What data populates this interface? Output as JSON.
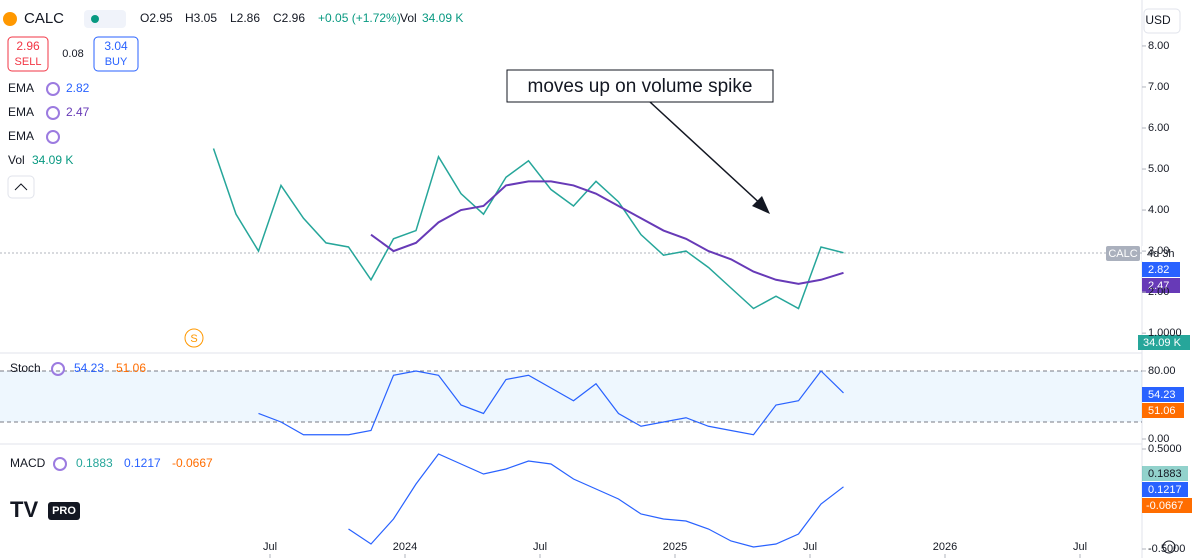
{
  "header": {
    "symbol": "CALC",
    "open": "O2.95",
    "high": "H3.05",
    "low": "L2.86",
    "close": "C2.96",
    "change": "+0.05 (+1.72%)",
    "volume_label": "Vol",
    "volume": "34.09 K"
  },
  "trade": {
    "sell_price": "2.96",
    "sell": "SELL",
    "spread": "0.08",
    "buy_price": "3.04",
    "buy": "BUY"
  },
  "legend": [
    {
      "name": "EMA",
      "value": "2.82"
    },
    {
      "name": "EMA",
      "value": "2.47"
    },
    {
      "name": "EMA"
    },
    {
      "name": "Vol",
      "value": "34.09 K"
    }
  ],
  "annotation": "moves up on volume spike",
  "currency": "USD",
  "marker": "S",
  "logo": "PRO",
  "x": [
    "2023-04",
    "2023-05",
    "2023-06",
    "2023-07",
    "2023-08",
    "2023-09",
    "2023-10",
    "2023-11",
    "2023-12",
    "2024-01",
    "2024-02",
    "2024-03",
    "2024-04",
    "2024-05",
    "2024-06",
    "2024-07",
    "2024-08",
    "2024-09",
    "2024-10",
    "2024-11",
    "2024-12",
    "2025-01",
    "2025-02",
    "2025-03",
    "2025-04",
    "2025-05",
    "2025-06",
    "2025-07",
    "2025-08"
  ],
  "xticks": [
    {
      "value": "2023-07",
      "label": "Jul"
    },
    {
      "value": "2024-01",
      "label": "2024"
    },
    {
      "value": "2024-07",
      "label": "Jul"
    },
    {
      "value": "2025-01",
      "label": "2025"
    },
    {
      "value": "2025-07",
      "label": "Jul"
    },
    {
      "value": "2026-01",
      "label": "2026"
    },
    {
      "value": "2026-07",
      "label": "Jul"
    }
  ],
  "price": {
    "ylim": [
      0.54,
      9.12
    ],
    "yticks": [
      {
        "value": 8,
        "label": "8.00"
      },
      {
        "value": 7,
        "label": "7.00"
      },
      {
        "value": 6,
        "label": "6.00"
      },
      {
        "value": 5,
        "label": "5.00"
      },
      {
        "value": 4,
        "label": "4.00"
      },
      {
        "value": 3,
        "label": "3.00"
      },
      {
        "value": 2,
        "label": "2.00"
      },
      {
        "value": 1,
        "label": "1.0000"
      }
    ],
    "close": [
      5.5,
      3.9,
      3.0,
      4.6,
      3.8,
      3.2,
      3.1,
      2.3,
      3.3,
      3.5,
      5.3,
      4.4,
      3.9,
      4.8,
      5.2,
      4.5,
      4.1,
      4.7,
      4.2,
      3.4,
      2.9,
      3.0,
      2.6,
      2.1,
      1.6,
      1.9,
      1.6,
      3.1,
      2.96
    ],
    "ema": [
      null,
      null,
      null,
      null,
      null,
      null,
      null,
      3.4,
      3.0,
      3.2,
      3.7,
      4.0,
      4.1,
      4.6,
      4.7,
      4.7,
      4.6,
      4.4,
      4.1,
      3.8,
      3.5,
      3.3,
      3.0,
      2.8,
      2.5,
      2.3,
      2.2,
      2.3,
      2.47
    ],
    "tags": {
      "symbol": "CALC",
      "countdown": "4d 3h",
      "ema_fast": "2.82",
      "ema_slow": "2.47",
      "volume": "34.09 K"
    }
  },
  "stoch": {
    "name": "Stoch",
    "k_label": "54.23",
    "d_label": "51.06",
    "ylim": [
      -4.7,
      98.8
    ],
    "yticks": [
      {
        "value": 80,
        "label": "80.00"
      },
      {
        "value": 0,
        "label": "0.00"
      }
    ],
    "k": [
      null,
      null,
      30,
      20,
      5,
      5,
      5,
      10,
      75,
      80,
      75,
      40,
      30,
      70,
      75,
      60,
      45,
      65,
      30,
      15,
      20,
      25,
      15,
      10,
      5,
      40,
      45,
      80,
      54.23
    ]
  },
  "macd": {
    "name": "MACD",
    "hist_label": "0.1883",
    "macd_label": "0.1217",
    "signal_label": "-0.0667",
    "ylim": [
      -0.59,
      0.53
    ],
    "yticks": [
      {
        "value": 0.5,
        "label": "0.5000"
      },
      {
        "value": -0.5,
        "label": "-0.5000"
      }
    ],
    "macd": [
      null,
      null,
      null,
      null,
      null,
      null,
      -0.3,
      -0.45,
      -0.2,
      0.15,
      0.45,
      0.35,
      0.25,
      0.3,
      0.38,
      0.35,
      0.2,
      0.1,
      0.0,
      -0.15,
      -0.2,
      -0.22,
      -0.3,
      -0.42,
      -0.48,
      -0.45,
      -0.35,
      -0.05,
      0.1217
    ]
  }
}
